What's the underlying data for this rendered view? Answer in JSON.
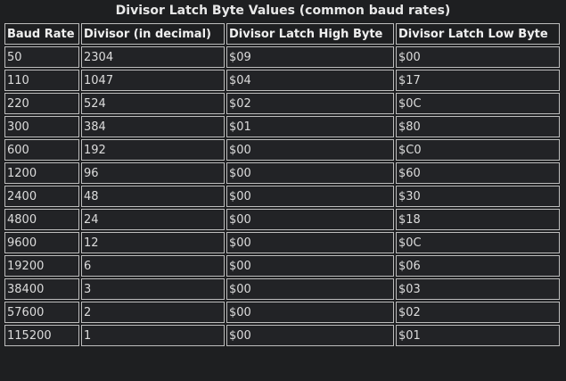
{
  "table": {
    "caption": "Divisor Latch Byte Values (common baud rates)",
    "headers": [
      "Baud Rate",
      "Divisor (in decimal)",
      "Divisor Latch High Byte",
      "Divisor Latch Low Byte"
    ],
    "rows": [
      [
        "50",
        "2304",
        "$09",
        "$00"
      ],
      [
        "110",
        "1047",
        "$04",
        "$17"
      ],
      [
        "220",
        "524",
        "$02",
        "$0C"
      ],
      [
        "300",
        "384",
        "$01",
        "$80"
      ],
      [
        "600",
        "192",
        "$00",
        "$C0"
      ],
      [
        "1200",
        "96",
        "$00",
        "$60"
      ],
      [
        "2400",
        "48",
        "$00",
        "$30"
      ],
      [
        "4800",
        "24",
        "$00",
        "$18"
      ],
      [
        "9600",
        "12",
        "$00",
        "$0C"
      ],
      [
        "19200",
        "6",
        "$00",
        "$06"
      ],
      [
        "38400",
        "3",
        "$00",
        "$03"
      ],
      [
        "57600",
        "2",
        "$00",
        "$02"
      ],
      [
        "115200",
        "1",
        "$00",
        "$01"
      ]
    ]
  }
}
